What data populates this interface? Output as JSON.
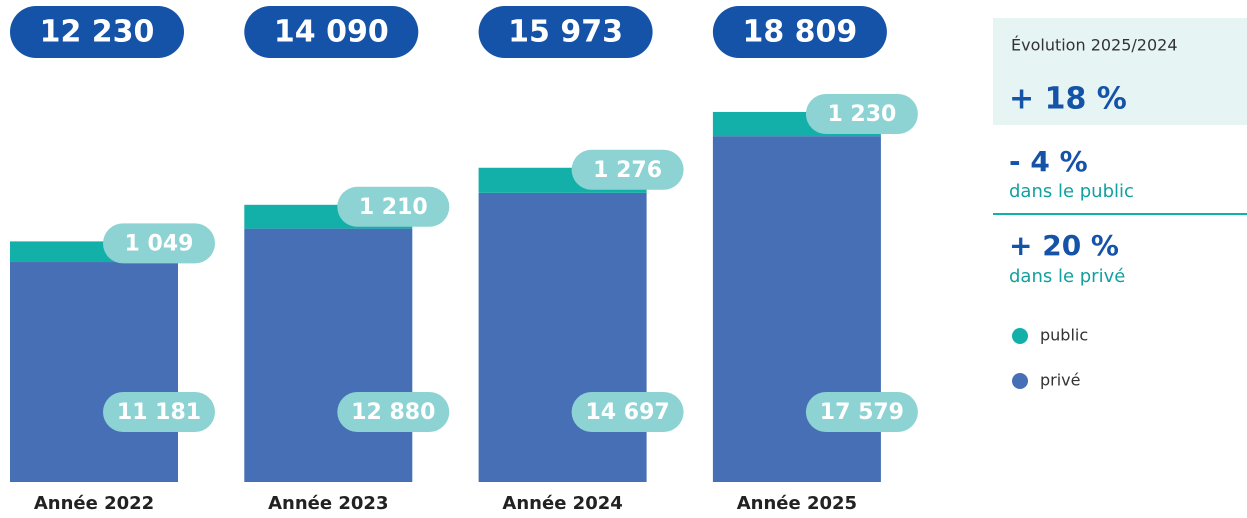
{
  "chart_data": {
    "type": "bar",
    "categories": [
      "Année 2022",
      "Année 2023",
      "Année 2024",
      "Année 2025"
    ],
    "series": [
      {
        "name": "privé",
        "color": "#466fb5",
        "values": [
          11181,
          12880,
          14697,
          17579
        ],
        "value_labels": [
          "11 181",
          "12 880",
          "14 697",
          "17 579"
        ]
      },
      {
        "name": "public",
        "color": "#13b0aa",
        "values": [
          1049,
          1210,
          1276,
          1230
        ],
        "value_labels": [
          "1 049",
          "1 210",
          "1 276",
          "1 230"
        ]
      }
    ],
    "totals": [
      12230,
      14090,
      15973,
      18809
    ],
    "total_labels": [
      "12 230",
      "14 090",
      "15 973",
      "18 809"
    ],
    "ylim": [
      0,
      24500
    ],
    "stacked": true
  },
  "panel": {
    "title": "Évolution 2025/2024",
    "total_change": "+ 18 %",
    "public_change": "- 4 %",
    "public_caption": "dans le public",
    "private_change": "+ 20 %",
    "private_caption": "dans le privé"
  }
}
